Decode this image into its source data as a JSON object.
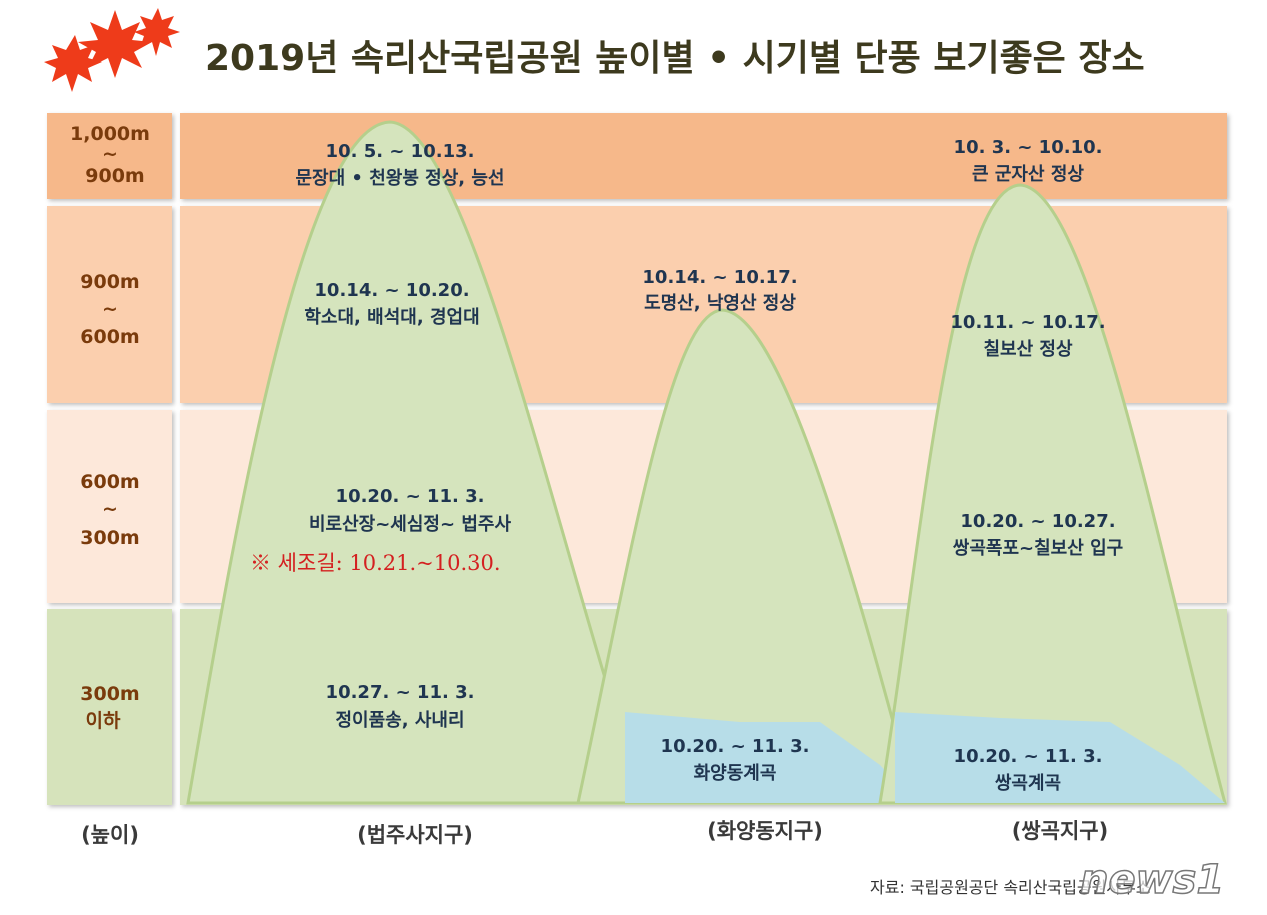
{
  "title": "2019년  속리산국립공원  높이별 • 시기별  단풍  보기좋은  장소",
  "colors": {
    "band1": "#f6b88a",
    "band2": "#fbcfae",
    "band3": "#fde8da",
    "band4": "#d6e3bb",
    "mountain": "#d5e4bd",
    "mountain_edge": "#b5cf8c",
    "water": "#b7dde8",
    "text": "#1f3550",
    "label": "#7a3b0c",
    "note": "#d42020"
  },
  "heights": [
    {
      "line1": "1,000m",
      "line2": "~",
      "line3": "900m"
    },
    {
      "line1": "900m",
      "line2": "~",
      "line3": "600m"
    },
    {
      "line1": "600m",
      "line2": "~",
      "line3": "300m"
    },
    {
      "line1": "300m",
      "line2": "이하",
      "line3": ""
    }
  ],
  "districts": {
    "height_label": "(높이)",
    "d1": "(법주사지구)",
    "d2": "(화양동지구)",
    "d3": "(쌍곡지구)"
  },
  "spots": {
    "beopjusa": [
      {
        "date": "10. 5. ~ 10.13.",
        "place": "문장대 • 천왕봉 정상, 능선"
      },
      {
        "date": "10.14. ~ 10.20.",
        "place": "학소대, 배석대, 경업대"
      },
      {
        "date": "10.20. ~ 11. 3.",
        "place": "비로산장~세심정~ 법주사"
      },
      {
        "date": "10.27. ~ 11. 3.",
        "place": "정이품송, 사내리"
      }
    ],
    "sejogil_note": "※ 세조길: 10.21.~10.30.",
    "hwayang": [
      {
        "date": "10.14. ~ 10.17.",
        "place": "도명산, 낙영산 정상"
      },
      {
        "date": "10.20. ~ 11. 3.",
        "place": "화양동계곡"
      }
    ],
    "ssanggok": [
      {
        "date": "10. 3. ~ 10.10.",
        "place": "큰 군자산 정상"
      },
      {
        "date": "10.11. ~ 10.17.",
        "place": "칠보산 정상"
      },
      {
        "date": "10.20. ~ 10.27.",
        "place": "쌍곡폭포~칠보산 입구"
      },
      {
        "date": "10.20. ~ 11. 3.",
        "place": "쌍곡계곡"
      }
    ]
  },
  "source": "자료: 국립공원공단 속리산국립공원사무소",
  "watermark": "news1",
  "icons": [
    "maple-leaf-icon"
  ]
}
